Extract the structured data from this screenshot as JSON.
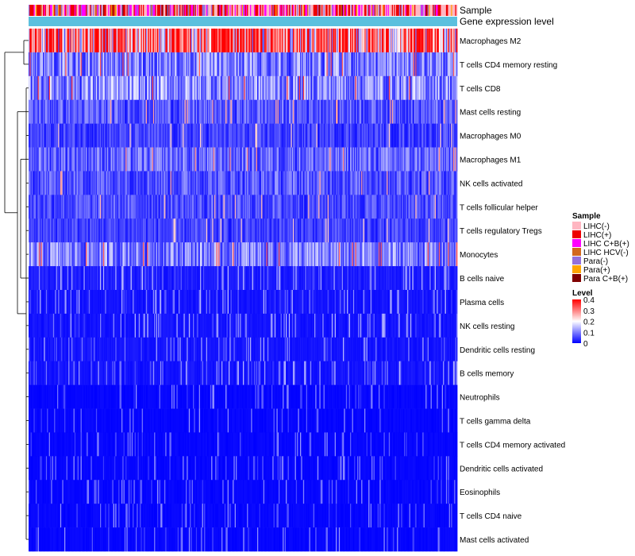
{
  "chart_data": {
    "type": "heatmap",
    "title": "",
    "annotation_tracks": [
      {
        "name": "Sample",
        "label": "Sample"
      },
      {
        "name": "Gene expression level",
        "label": "Gene expression level"
      }
    ],
    "rows": [
      "Macrophages M2",
      "T cells CD4 memory resting",
      "T cells CD8",
      "Mast cells resting",
      "Macrophages M0",
      "Macrophages M1",
      "NK cells activated",
      "T cells follicular helper",
      "T cells regulatory  Tregs",
      "Monocytes",
      "B cells naive",
      "Plasma cells",
      "NK cells resting",
      "Dendritic cells resting",
      "B cells memory",
      "Neutrophils",
      "T cells gamma delta",
      "T cells CD4 memory activated",
      "Dendritic cells activated",
      "Eosinophils",
      "T cells CD4 naive",
      "Mast cells activated"
    ],
    "row_mean_level": [
      0.3,
      0.1,
      0.11,
      0.07,
      0.05,
      0.08,
      0.07,
      0.06,
      0.05,
      0.1,
      0.03,
      0.02,
      0.02,
      0.02,
      0.02,
      0.01,
      0.01,
      0.01,
      0.01,
      0.01,
      0.01,
      0.01
    ],
    "n_columns": 420,
    "sample_legend": {
      "title": "Sample",
      "items": [
        {
          "label": "LIHC(-)",
          "color": "#FFB6C1"
        },
        {
          "label": "LIHC(+)",
          "color": "#EE0000"
        },
        {
          "label": "LIHC C+B(+)",
          "color": "#FF00FF"
        },
        {
          "label": "LIHC HCV(-)",
          "color": "#D2691E"
        },
        {
          "label": "Para(-)",
          "color": "#9370DB"
        },
        {
          "label": "Para(+)",
          "color": "#FFA500"
        },
        {
          "label": "Para C+B(+)",
          "color": "#800000"
        }
      ]
    },
    "level_legend": {
      "title": "Level",
      "ticks": [
        "0.4",
        "0.3",
        "0.2",
        "0.1",
        "0"
      ],
      "range": [
        0,
        0.4
      ]
    },
    "colors": {
      "low": "#0000FF",
      "mid": "#FFFFFF",
      "high": "#FF0000",
      "expression_bar": "#5BC0DE"
    }
  }
}
